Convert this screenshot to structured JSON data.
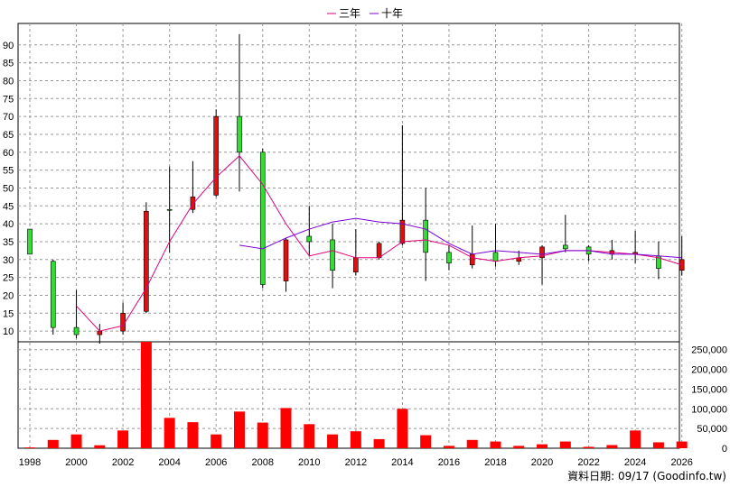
{
  "chart_data": {
    "type": "candlestick",
    "legend": [
      {
        "name": "三年",
        "color": "#e0007a"
      },
      {
        "name": "十年",
        "color": "#7b00d8"
      }
    ],
    "legend_position": "top-center",
    "grid": true,
    "price_axis": {
      "ylim": [
        7,
        96
      ],
      "ticks": [
        10,
        15,
        20,
        25,
        30,
        35,
        40,
        45,
        50,
        55,
        60,
        65,
        70,
        75,
        80,
        85,
        90
      ]
    },
    "volume_axis": {
      "ylim": [
        0,
        270000
      ],
      "ticks": [
        0,
        50000,
        100000,
        150000,
        200000,
        250000
      ],
      "tick_labels": [
        "0",
        "50,000",
        "100,000",
        "150,000",
        "200,000",
        "250,000"
      ]
    },
    "x_axis": {
      "xlim": [
        1998,
        2026.4
      ],
      "ticks": [
        1998,
        2000,
        2002,
        2004,
        2006,
        2008,
        2010,
        2012,
        2014,
        2016,
        2018,
        2020,
        2022,
        2024,
        2026
      ]
    },
    "up_color": "#33dd33",
    "down_color": "#dd1111",
    "candles": [
      {
        "year": 1998,
        "open": 31.5,
        "close": 38.5,
        "high": 38.5,
        "low": 31.5
      },
      {
        "year": 1999,
        "open": 11,
        "close": 29.5,
        "high": 30,
        "low": 9
      },
      {
        "year": 2000,
        "open": 9,
        "close": 11,
        "high": 21.5,
        "low": 8
      },
      {
        "year": 2001,
        "open": 10,
        "close": 9,
        "high": 12,
        "low": 6.5
      },
      {
        "year": 2002,
        "open": 15,
        "close": 10,
        "high": 18,
        "low": 9
      },
      {
        "year": 2003,
        "open": 43.5,
        "close": 15.5,
        "high": 46,
        "low": 15
      },
      {
        "year": 2004,
        "open": 44,
        "close": 44,
        "high": 56,
        "low": 32
      },
      {
        "year": 2005,
        "open": 47.5,
        "close": 44,
        "high": 57.5,
        "low": 43
      },
      {
        "year": 2006,
        "open": 70,
        "close": 48,
        "high": 72,
        "low": 47.5
      },
      {
        "year": 2007,
        "open": 60,
        "close": 70,
        "high": 93,
        "low": 49
      },
      {
        "year": 2008,
        "open": 23,
        "close": 60,
        "high": 61,
        "low": 22
      },
      {
        "year": 2009,
        "open": 35.5,
        "close": 24,
        "high": 36,
        "low": 21
      },
      {
        "year": 2010,
        "open": 35,
        "close": 36.5,
        "high": 45,
        "low": 31
      },
      {
        "year": 2011,
        "open": 27,
        "close": 35.5,
        "high": 40,
        "low": 22
      },
      {
        "year": 2012,
        "open": 30.5,
        "close": 26.5,
        "high": 38.5,
        "low": 25.5
      },
      {
        "year": 2013,
        "open": 34.5,
        "close": 30.5,
        "high": 35,
        "low": 30
      },
      {
        "year": 2014,
        "open": 41,
        "close": 34.5,
        "high": 67.5,
        "low": 34
      },
      {
        "year": 2015,
        "open": 32,
        "close": 41,
        "high": 50,
        "low": 24
      },
      {
        "year": 2016,
        "open": 29,
        "close": 32,
        "high": 34,
        "low": 27
      },
      {
        "year": 2017,
        "open": 31.5,
        "close": 28.5,
        "high": 39.5,
        "low": 27.5
      },
      {
        "year": 2018,
        "open": 29.5,
        "close": 32,
        "high": 40,
        "low": 28
      },
      {
        "year": 2019,
        "open": 30.5,
        "close": 29.5,
        "high": 32.5,
        "low": 28.5
      },
      {
        "year": 2020,
        "open": 33.5,
        "close": 30.5,
        "high": 34,
        "low": 23
      },
      {
        "year": 2021,
        "open": 33,
        "close": 34,
        "high": 42.5,
        "low": 32
      },
      {
        "year": 2022,
        "open": 31.5,
        "close": 33.5,
        "high": 34,
        "low": 29.5
      },
      {
        "year": 2023,
        "open": 32.5,
        "close": 31.5,
        "high": 35.5,
        "low": 30
      },
      {
        "year": 2024,
        "open": 32,
        "close": 31.5,
        "high": 38,
        "low": 29
      },
      {
        "year": 2025,
        "open": 27.5,
        "close": 31,
        "high": 35,
        "low": 24.5
      },
      {
        "year": 2026,
        "open": 30,
        "close": 27,
        "high": 36.5,
        "low": 25.5
      }
    ],
    "series": [
      {
        "name": "三年",
        "x": [
          2000,
          2001,
          2002,
          2003,
          2004,
          2005,
          2006,
          2007,
          2008,
          2009,
          2010,
          2011,
          2012,
          2013,
          2014,
          2015,
          2016,
          2017,
          2018,
          2019,
          2020,
          2021,
          2022,
          2023,
          2024,
          2025,
          2026
        ],
        "values": [
          17,
          10,
          11.5,
          22,
          35,
          45.5,
          53,
          59,
          51,
          40,
          31,
          32.5,
          30.5,
          30.5,
          35,
          35.5,
          34,
          30.5,
          29.5,
          30.5,
          31,
          32.5,
          32.5,
          32,
          31.5,
          30.5,
          28.5
        ]
      },
      {
        "name": "十年",
        "x": [
          2007,
          2008,
          2009,
          2010,
          2011,
          2012,
          2013,
          2014,
          2015,
          2016,
          2017,
          2018,
          2019,
          2020,
          2021,
          2022,
          2023,
          2024,
          2025,
          2026
        ],
        "values": [
          34,
          33,
          36,
          38.5,
          40.5,
          41.5,
          40.5,
          40,
          38.5,
          34.5,
          31.5,
          32.5,
          32,
          31.5,
          32.5,
          32.5,
          31.5,
          31.5,
          31,
          30.5
        ]
      }
    ],
    "volume": {
      "x": [
        1998,
        1999,
        2000,
        2001,
        2002,
        2003,
        2004,
        2005,
        2006,
        2007,
        2008,
        2009,
        2010,
        2011,
        2012,
        2013,
        2014,
        2015,
        2016,
        2017,
        2018,
        2019,
        2020,
        2021,
        2022,
        2023,
        2024,
        2025,
        2026
      ],
      "values": [
        2000,
        21000,
        35000,
        7500,
        45000,
        270000,
        77000,
        66000,
        35000,
        93000,
        65000,
        102000,
        61000,
        35000,
        43000,
        23000,
        100000,
        33000,
        6000,
        21000,
        17000,
        6000,
        10000,
        17000,
        3500,
        8000,
        45000,
        15000,
        17000
      ],
      "color": "#ff0000"
    }
  },
  "footer": {
    "text": "資料日期: 09/17  (Goodinfo.tw)"
  }
}
